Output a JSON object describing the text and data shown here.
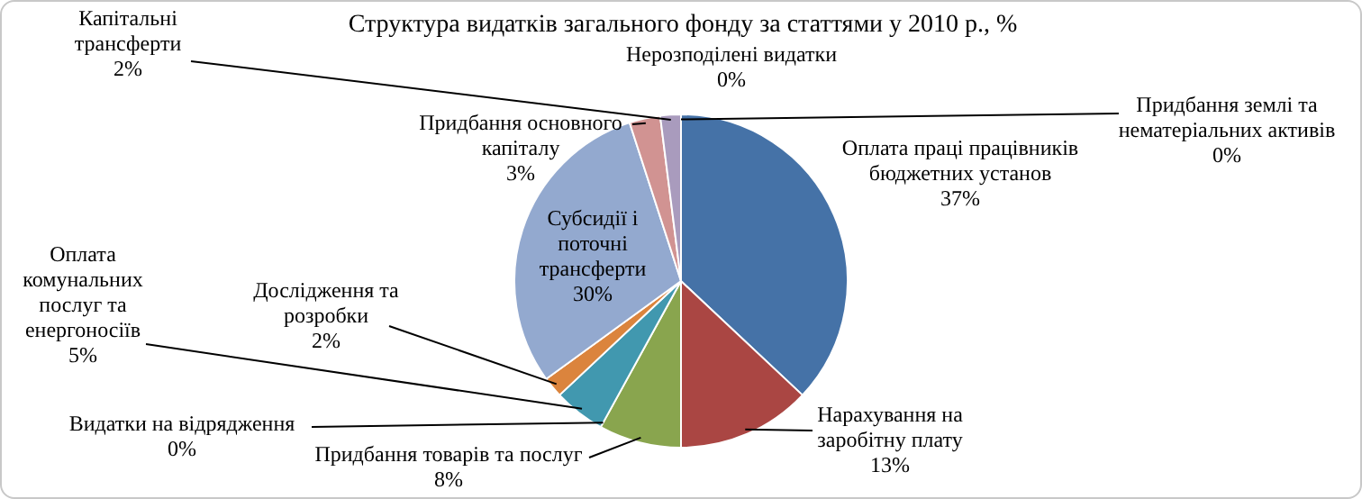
{
  "chart_data": {
    "type": "pie",
    "title": "Структура видатків загального фонду за статтями у 2010 р., %",
    "categories": [
      "Оплата праці працівників бюджетних установ",
      "Нарахування на заробітну плату",
      "Придбання товарів та послуг",
      "Видатки на відрядження",
      "Оплата комунальних послуг та енергоносіїв",
      "Дослідження та розробки",
      "Субсидії і поточні трансферти",
      "Придбання основного капіталу",
      "Капітальні трансферти",
      "Нерозподілені видатки",
      "Придбання землі та нематеріальних активів"
    ],
    "values": [
      37,
      13,
      8,
      0,
      5,
      2,
      30,
      3,
      2,
      0,
      0
    ],
    "value_labels": [
      "37%",
      "13%",
      "8%",
      "0%",
      "5%",
      "2%",
      "30%",
      "3%",
      "2%",
      "0%",
      "0%"
    ],
    "colors": [
      "#4572a7",
      "#aa4643",
      "#89a54e",
      "#71588f",
      "#4198af",
      "#db843d",
      "#93a9cf",
      "#d19392",
      "#a99bbd",
      "#9bbb59",
      "#8064a2"
    ]
  }
}
